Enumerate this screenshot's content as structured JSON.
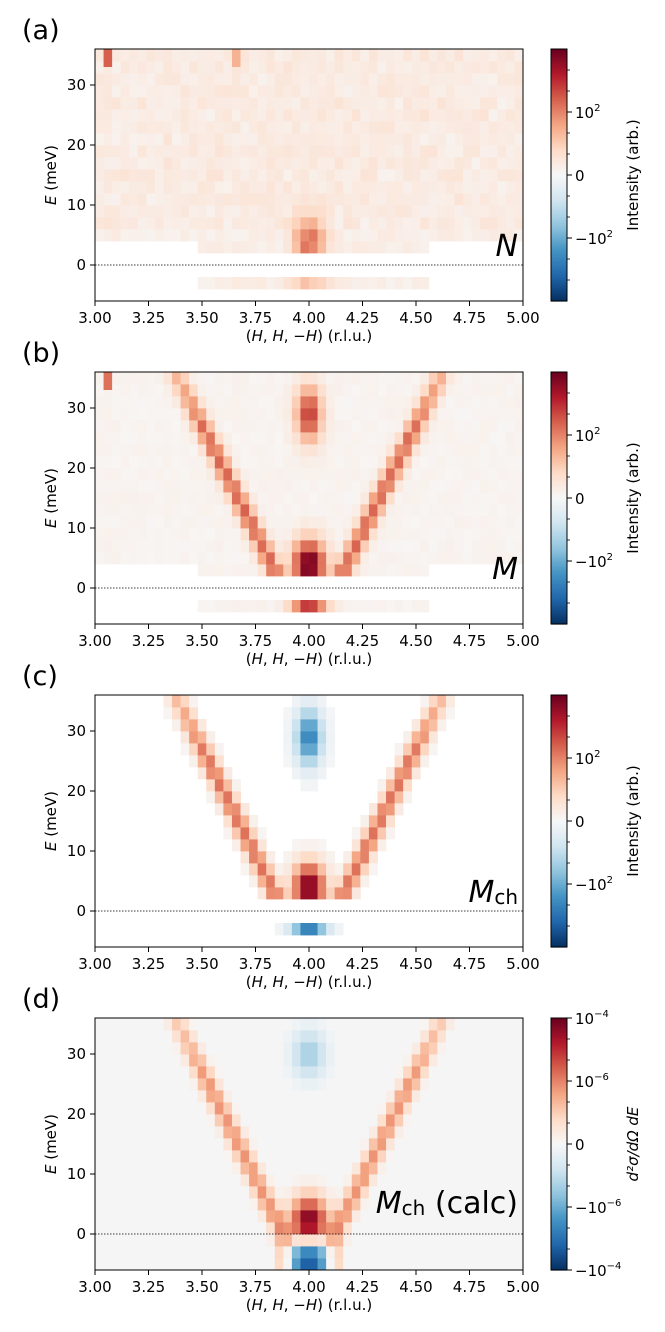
{
  "figure": {
    "colorbar_colors": [
      "#053061",
      "#2166ac",
      "#4393c3",
      "#92c5de",
      "#d1e5f0",
      "#f7f7f7",
      "#fddbc7",
      "#f4a582",
      "#d6604d",
      "#b2182b",
      "#67001f"
    ]
  },
  "chart_data": [
    {
      "type": "heatmap",
      "panel": "(a)",
      "label_main": "N",
      "label_sub": "",
      "label_extra": "",
      "xlabel_parts": [
        "(",
        "H",
        ", ",
        "H",
        ", −",
        "H",
        ") (r.l.u.)"
      ],
      "ylabel_parts": [
        "E",
        " (meV)"
      ],
      "xlim": [
        3.0,
        5.0
      ],
      "ylim": [
        -6,
        36
      ],
      "xticks": [
        3.0,
        3.25,
        3.5,
        3.75,
        4.0,
        4.25,
        4.5,
        4.75,
        5.0
      ],
      "xtick_labels": [
        "3.00",
        "3.25",
        "3.50",
        "3.75",
        "4.00",
        "4.25",
        "4.50",
        "4.75",
        "5.00"
      ],
      "yticks": [
        0,
        10,
        20,
        30
      ],
      "ytick_labels": [
        "0",
        "10",
        "20",
        "30"
      ],
      "colorbar_label": "Intensity (arb.)",
      "colorbar_ticks": [
        {
          "text": "10",
          "sup": "2",
          "frac": 0.75
        },
        {
          "text": "0",
          "sup": "",
          "frac": 0.5
        },
        {
          "text": "−10",
          "sup": "2",
          "frac": 0.25
        }
      ],
      "signal": {
        "model": "N",
        "cone_amp": 0.0,
        "bottom_amp": 0.5,
        "top_amp": 0.0,
        "neg_amp": 0.22,
        "bg": 0.08
      },
      "dispersion": "vertex at (H=4.00, E=3 meV), branch |H−4| ≈ 0.12 + 0.014·E",
      "hot_pixels": [
        {
          "h": 3.06,
          "e": 34.5,
          "v": 0.6
        },
        {
          "h": 3.66,
          "e": 34.5,
          "v": 0.35
        }
      ]
    },
    {
      "type": "heatmap",
      "panel": "(b)",
      "label_main": "M",
      "label_sub": "",
      "label_extra": "",
      "xlabel_parts": [
        "(",
        "H",
        ", ",
        "H",
        ", −",
        "H",
        ") (r.l.u.)"
      ],
      "ylabel_parts": [
        "E",
        " (meV)"
      ],
      "xlim": [
        3.0,
        5.0
      ],
      "ylim": [
        -6,
        36
      ],
      "xticks": [
        3.0,
        3.25,
        3.5,
        3.75,
        4.0,
        4.25,
        4.5,
        4.75,
        5.0
      ],
      "xtick_labels": [
        "3.00",
        "3.25",
        "3.50",
        "3.75",
        "4.00",
        "4.25",
        "4.50",
        "4.75",
        "5.00"
      ],
      "yticks": [
        0,
        10,
        20,
        30
      ],
      "ytick_labels": [
        "0",
        "10",
        "20",
        "30"
      ],
      "colorbar_label": "Intensity (arb.)",
      "colorbar_ticks": [
        {
          "text": "10",
          "sup": "2",
          "frac": 0.75
        },
        {
          "text": "0",
          "sup": "",
          "frac": 0.5
        },
        {
          "text": "−10",
          "sup": "2",
          "frac": 0.25
        }
      ],
      "signal": {
        "model": "M",
        "cone_amp": 0.55,
        "bottom_amp": 1.0,
        "top_amp": 0.7,
        "neg_amp": 0.7,
        "bg": 0.04
      },
      "dispersion": "vertex at (H=4.00, E=3 meV), branch |H−4| ≈ 0.12 + 0.014·E",
      "hot_pixels": [
        {
          "h": 3.06,
          "e": 34.5,
          "v": 0.55
        }
      ]
    },
    {
      "type": "heatmap",
      "panel": "(c)",
      "label_main": "M",
      "label_sub": "ch",
      "label_extra": "",
      "xlabel_parts": [
        "(",
        "H",
        ", ",
        "H",
        ", −",
        "H",
        ") (r.l.u.)"
      ],
      "ylabel_parts": [
        "E",
        " (meV)"
      ],
      "xlim": [
        3.0,
        5.0
      ],
      "ylim": [
        -6,
        36
      ],
      "xticks": [
        3.0,
        3.25,
        3.5,
        3.75,
        4.0,
        4.25,
        4.5,
        4.75,
        5.0
      ],
      "xtick_labels": [
        "3.00",
        "3.25",
        "3.50",
        "3.75",
        "4.00",
        "4.25",
        "4.50",
        "4.75",
        "5.00"
      ],
      "yticks": [
        0,
        10,
        20,
        30
      ],
      "ytick_labels": [
        "0",
        "10",
        "20",
        "30"
      ],
      "colorbar_label": "Intensity (arb.)",
      "colorbar_ticks": [
        {
          "text": "10",
          "sup": "2",
          "frac": 0.75
        },
        {
          "text": "0",
          "sup": "",
          "frac": 0.5
        },
        {
          "text": "−10",
          "sup": "2",
          "frac": 0.25
        }
      ],
      "signal": {
        "model": "C",
        "cone_amp": 0.55,
        "bottom_amp": 1.0,
        "top_amp": -0.7,
        "neg_amp": -0.7,
        "bg": 0.0
      },
      "dispersion": "vertex at (H=4.00, E=3 meV), branch |H−4| ≈ 0.12 + 0.014·E",
      "hot_pixels": []
    },
    {
      "type": "heatmap",
      "panel": "(d)",
      "label_main": "M",
      "label_sub": "ch",
      "label_extra": " (calc)",
      "xlabel_parts": [
        "(",
        "H",
        ", ",
        "H",
        ", −",
        "H",
        ") (r.l.u.)"
      ],
      "ylabel_parts": [
        "E",
        " (meV)"
      ],
      "xlim": [
        3.0,
        5.0
      ],
      "ylim": [
        -6,
        36
      ],
      "xticks": [
        3.0,
        3.25,
        3.5,
        3.75,
        4.0,
        4.25,
        4.5,
        4.75,
        5.0
      ],
      "xtick_labels": [
        "3.00",
        "3.25",
        "3.50",
        "3.75",
        "4.00",
        "4.25",
        "4.50",
        "4.75",
        "5.00"
      ],
      "yticks": [
        0,
        10,
        20,
        30
      ],
      "ytick_labels": [
        "0",
        "10",
        "20",
        "30"
      ],
      "colorbar_label": "d²σ/dΩ dE",
      "colorbar_ticks": [
        {
          "text": "10",
          "sup": "−4",
          "frac": 1.0
        },
        {
          "text": "10",
          "sup": "−6",
          "frac": 0.75
        },
        {
          "text": "0",
          "sup": "",
          "frac": 0.5
        },
        {
          "text": "−10",
          "sup": "−6",
          "frac": 0.25
        },
        {
          "text": "−10",
          "sup": "−4",
          "frac": 0.0
        }
      ],
      "signal": {
        "model": "D",
        "cone_amp": 0.45,
        "bottom_amp": 1.0,
        "top_amp": -0.35,
        "neg_amp": -1.0,
        "bg": 0.0
      },
      "dispersion": "vertex at (H=4.00, E=0 meV), branch |H−4| ≈ 0.12 + 0.014·E",
      "hot_pixels": []
    }
  ]
}
